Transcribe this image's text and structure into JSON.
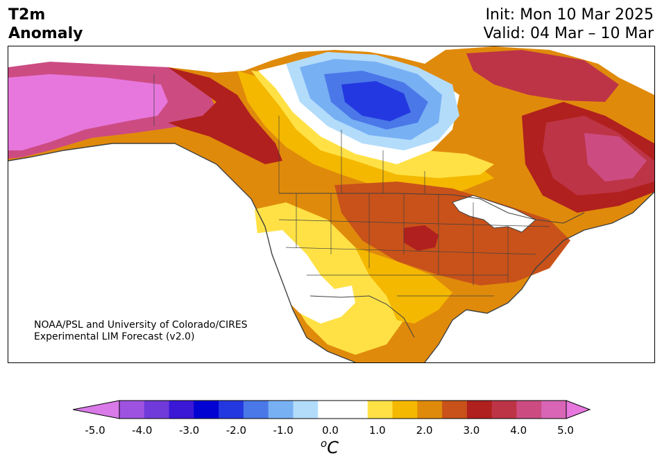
{
  "header": {
    "title_line1": "T2m",
    "title_line2": "Anomaly",
    "init": "Init: Mon 10 Mar 2025",
    "valid": "Valid: 04 Mar – 10 Mar"
  },
  "credit": {
    "line1": "NOAA/PSL and University of Colorado/CIRES",
    "line2": "Experimental LIM Forecast (v2.0)"
  },
  "colorbar": {
    "ticks": [
      "-5.0",
      "-4.0",
      "-3.0",
      "-2.0",
      "-1.0",
      "0.0",
      "1.0",
      "2.0",
      "3.0",
      "4.0",
      "5.0"
    ],
    "unit_base": "C",
    "unit_sup": "o",
    "colors": [
      "#9e52e0",
      "#6f3ad9",
      "#3a18d6",
      "#0202d3",
      "#2338e0",
      "#4a78e8",
      "#78b0f4",
      "#b3dcfb",
      "#ffffff",
      "#ffffff",
      "#ffe145",
      "#f4b800",
      "#e08a0b",
      "#c8521a",
      "#b0201e",
      "#bd3446",
      "#cc4c82",
      "#d865b6"
    ],
    "under_color": "#d97ae8",
    "over_color": "#e777dd"
  },
  "map_colors": {
    "ocean": "#ffffff",
    "coast": "#404040",
    "border": "#404040"
  }
}
